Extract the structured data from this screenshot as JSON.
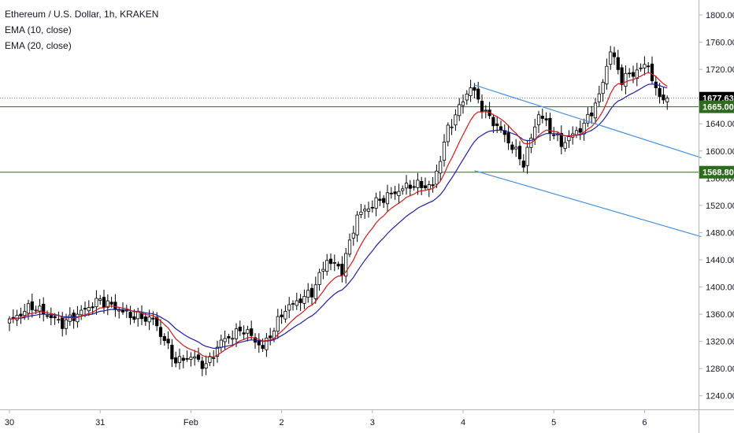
{
  "legend": {
    "title": "Ethereum / U.S. Dollar, 1h, KRAKEN",
    "ema10": "EMA (10, close)",
    "ema20": "EMA (20, close)"
  },
  "colors": {
    "candle_up": "#ffffff",
    "candle_down": "#000000",
    "candle_outline": "#000000",
    "ema10": "#d11b1b",
    "ema20": "#1f1fa8",
    "trendline": "#4a90e2",
    "horizontal_level": "#2e6b1f",
    "last_price_tag": "#000000"
  },
  "chart_data": {
    "type": "candlestick",
    "symbol": "Ethereum / U.S. Dollar",
    "interval": "1h",
    "exchange": "KRAKEN",
    "y_axis": {
      "ticks": [
        1240,
        1280,
        1320,
        1360,
        1400,
        1440,
        1480,
        1520,
        1560,
        1600,
        1640,
        1680,
        1720,
        1760,
        1800
      ],
      "tick_labels": [
        "1240.00",
        "1280.00",
        "1320.00",
        "1360.00",
        "1400.00",
        "1440.00",
        "1480.00",
        "1520.00",
        "1560.00",
        "1600.00",
        "1640.00",
        "1680.00",
        "1720.00",
        "1760.00",
        "1800.00"
      ],
      "range": [
        1220,
        1822
      ]
    },
    "x_axis": {
      "labels": [
        {
          "text": "30",
          "bar": 0
        },
        {
          "text": "31",
          "bar": 24
        },
        {
          "text": "Feb",
          "bar": 48
        },
        {
          "text": "2",
          "bar": 72
        },
        {
          "text": "3",
          "bar": 96
        },
        {
          "text": "4",
          "bar": 120
        },
        {
          "text": "5",
          "bar": 144
        },
        {
          "text": "6",
          "bar": 168
        }
      ],
      "bar_count": 175
    },
    "price_tags": [
      {
        "value": 1677.63,
        "label": "1677.63",
        "color": "#000000"
      },
      {
        "value": 1665.0,
        "label": "1665.00",
        "color": "#2e6b1f"
      },
      {
        "value": 1568.8,
        "label": "1568.80",
        "color": "#2e6b1f"
      }
    ],
    "horizontal_levels": [
      1665.0,
      1568.8
    ],
    "last_price": 1677.63,
    "trendlines": [
      {
        "from": {
          "bar": 123,
          "price": 1697
        },
        "to": {
          "bar": 183,
          "price": 1590
        }
      },
      {
        "from": {
          "bar": 123,
          "price": 1571
        },
        "to": {
          "bar": 183,
          "price": 1474
        }
      }
    ],
    "key_points": [
      {
        "bar": 0,
        "price": 1350
      },
      {
        "bar": 6,
        "price": 1372
      },
      {
        "bar": 14,
        "price": 1346
      },
      {
        "bar": 24,
        "price": 1381
      },
      {
        "bar": 32,
        "price": 1358
      },
      {
        "bar": 38,
        "price": 1352
      },
      {
        "bar": 44,
        "price": 1290
      },
      {
        "bar": 48,
        "price": 1298
      },
      {
        "bar": 52,
        "price": 1284
      },
      {
        "bar": 56,
        "price": 1320
      },
      {
        "bar": 62,
        "price": 1338
      },
      {
        "bar": 67,
        "price": 1310
      },
      {
        "bar": 73,
        "price": 1368
      },
      {
        "bar": 80,
        "price": 1392
      },
      {
        "bar": 84,
        "price": 1440
      },
      {
        "bar": 88,
        "price": 1425
      },
      {
        "bar": 92,
        "price": 1505
      },
      {
        "bar": 98,
        "price": 1528
      },
      {
        "bar": 106,
        "price": 1550
      },
      {
        "bar": 112,
        "price": 1548
      },
      {
        "bar": 116,
        "price": 1632
      },
      {
        "bar": 122,
        "price": 1695
      },
      {
        "bar": 126,
        "price": 1655
      },
      {
        "bar": 130,
        "price": 1630
      },
      {
        "bar": 136,
        "price": 1582
      },
      {
        "bar": 140,
        "price": 1655
      },
      {
        "bar": 146,
        "price": 1610
      },
      {
        "bar": 152,
        "price": 1638
      },
      {
        "bar": 156,
        "price": 1680
      },
      {
        "bar": 159,
        "price": 1748
      },
      {
        "bar": 162,
        "price": 1705
      },
      {
        "bar": 166,
        "price": 1718
      },
      {
        "bar": 169,
        "price": 1728
      },
      {
        "bar": 171,
        "price": 1685
      },
      {
        "bar": 174,
        "price": 1677.63
      }
    ]
  }
}
